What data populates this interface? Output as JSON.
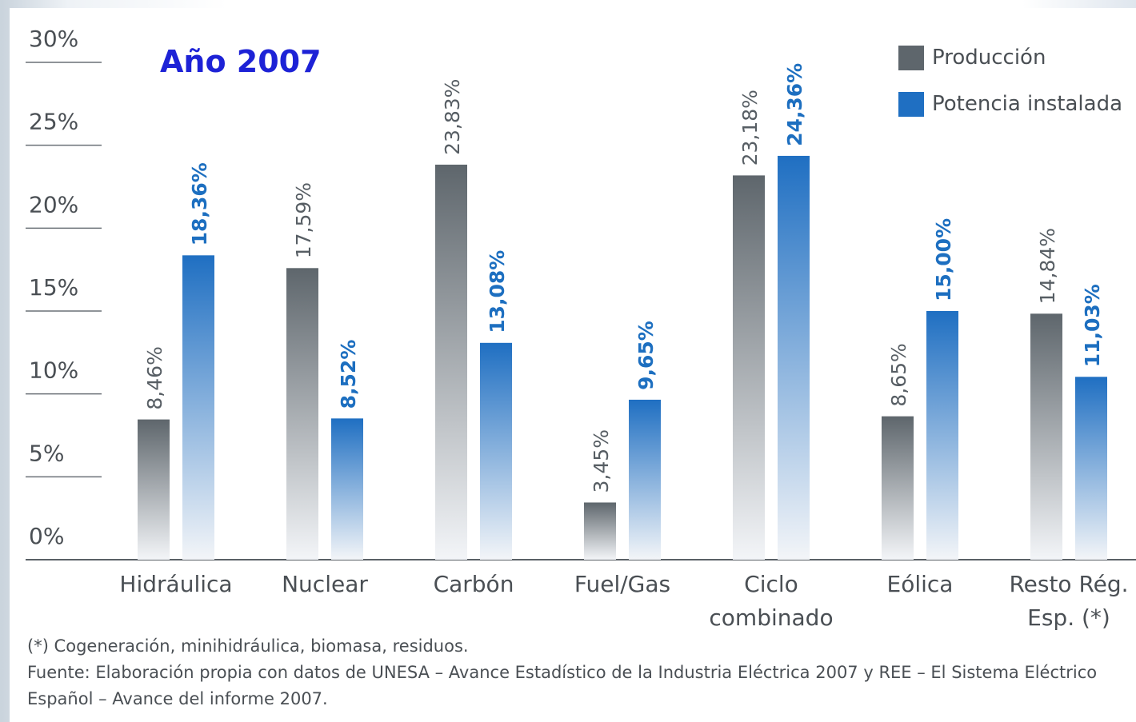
{
  "chart_data": {
    "type": "bar",
    "title": "Año 2007",
    "categories": [
      "Hidráulica",
      "Nuclear",
      "Carbón",
      "Fuel/Gas",
      "Ciclo\ncombinado",
      "Eólica",
      "Resto Rég.\nEsp. (*)"
    ],
    "series": [
      {
        "name": "Producción",
        "color": "#5e666c",
        "values": [
          8.46,
          17.59,
          23.83,
          3.45,
          23.18,
          8.65,
          14.84
        ],
        "value_labels": [
          "8,46%",
          "17,59%",
          "23,83%",
          "3,45%",
          "23,18%",
          "8,65%",
          "14,84%"
        ]
      },
      {
        "name": "Potencia instalada",
        "color": "#1f6fc2",
        "values": [
          18.36,
          8.52,
          13.08,
          9.65,
          24.36,
          15.0,
          11.03
        ],
        "value_labels": [
          "18,36%",
          "8,52%",
          "13,08%",
          "9,65%",
          "24,36%",
          "15,00%",
          "11,03%"
        ]
      }
    ],
    "ylim": [
      0,
      30
    ],
    "yticks": [
      {
        "value": 0,
        "label": "0%"
      },
      {
        "value": 5,
        "label": "5%"
      },
      {
        "value": 10,
        "label": "10%"
      },
      {
        "value": 15,
        "label": "15%"
      },
      {
        "value": 20,
        "label": "20%"
      },
      {
        "value": 25,
        "label": "25%"
      },
      {
        "value": 30,
        "label": "30%"
      }
    ],
    "legend": "top-right",
    "notes": [
      "(*) Cogeneración, minihidráulica, biomasa, residuos.",
      "Fuente: Elaboración propia con datos de UNESA – Avance Estadístico de la Industria Eléctrica 2007 y REE – El Sistema Eléctrico Español – Avance del informe 2007."
    ]
  }
}
